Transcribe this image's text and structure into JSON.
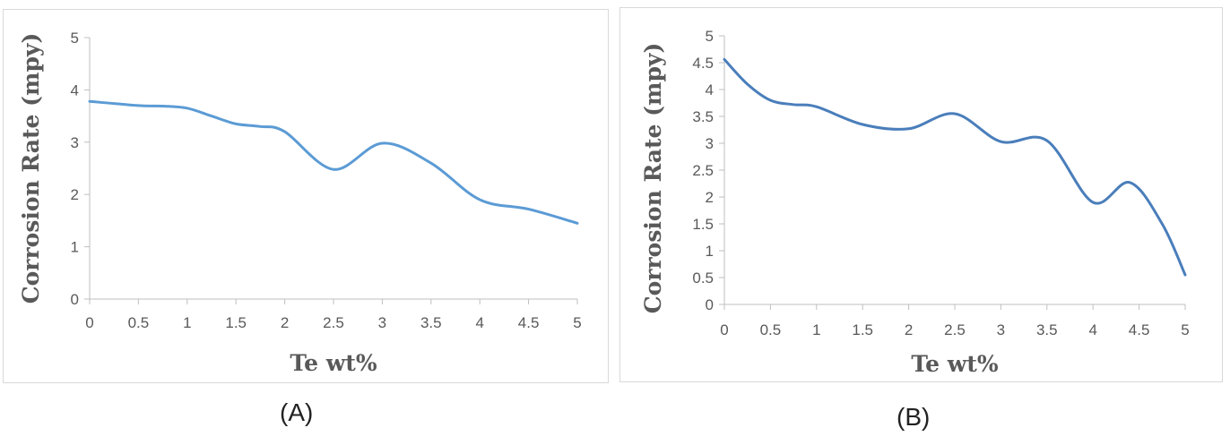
{
  "chart_data": [
    {
      "type": "line",
      "panel_label": "(A)",
      "xlabel": "Te wt%",
      "ylabel": "Corrosion Rate (mpy)",
      "xlim": [
        0,
        5
      ],
      "ylim": [
        0,
        5
      ],
      "x_ticks": [
        "0",
        "0.5",
        "1",
        "1.5",
        "2",
        "2.5",
        "3",
        "3.5",
        "4",
        "4.5",
        "5"
      ],
      "y_ticks": [
        "0",
        "1",
        "2",
        "3",
        "4",
        "5"
      ],
      "grid": false,
      "series": [
        {
          "color": "#5b9bd5",
          "x": [
            0,
            0.5,
            0.75,
            1,
            1.25,
            1.5,
            1.75,
            2,
            2.5,
            3,
            3.5,
            4,
            4.5,
            5
          ],
          "y": [
            3.78,
            3.7,
            3.69,
            3.65,
            3.5,
            3.35,
            3.3,
            3.2,
            2.48,
            2.98,
            2.6,
            1.9,
            1.72,
            1.45
          ]
        }
      ]
    },
    {
      "type": "line",
      "panel_label": "(B)",
      "xlabel": "Te wt%",
      "ylabel": "Corrosion Rate (mpy)",
      "xlim": [
        0,
        5
      ],
      "ylim": [
        0,
        5
      ],
      "x_ticks": [
        "0",
        "0.5",
        "1",
        "1.5",
        "2",
        "2.5",
        "3",
        "3.5",
        "4",
        "4.5",
        "5"
      ],
      "y_ticks": [
        "0",
        "0.5",
        "1",
        "1.5",
        "2",
        "2.5",
        "3",
        "3.5",
        "4",
        "4.5",
        "5"
      ],
      "grid": false,
      "series": [
        {
          "color": "#4a7ebb",
          "x": [
            0,
            0.25,
            0.5,
            0.75,
            1,
            1.5,
            2,
            2.5,
            3,
            3.5,
            4,
            4.4,
            4.75,
            5
          ],
          "y": [
            4.56,
            4.1,
            3.8,
            3.72,
            3.68,
            3.35,
            3.27,
            3.55,
            3.03,
            3.05,
            1.9,
            2.27,
            1.5,
            0.55
          ]
        }
      ]
    }
  ]
}
